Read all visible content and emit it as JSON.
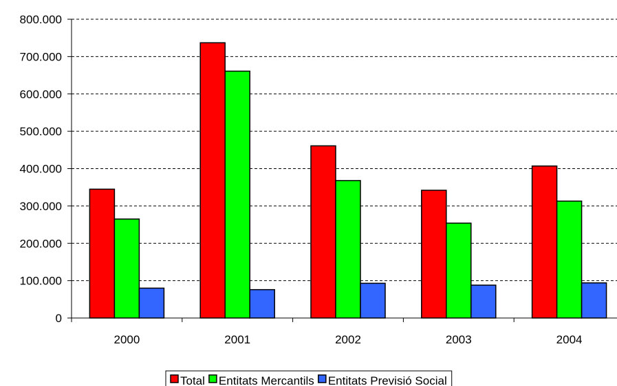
{
  "chart_data": {
    "type": "bar",
    "title": "",
    "xlabel": "",
    "ylabel": "",
    "categories": [
      "2000",
      "2001",
      "2002",
      "2003",
      "2004"
    ],
    "series": [
      {
        "name": "Total",
        "color": "#ff0000",
        "values": [
          345000,
          737000,
          461000,
          342000,
          407000
        ]
      },
      {
        "name": "Entitats Mercantils",
        "color": "#00ff00",
        "values": [
          265000,
          661000,
          368000,
          254000,
          313000
        ]
      },
      {
        "name": "Entitats Previsió Social",
        "color": "#3366ff",
        "values": [
          80000,
          76000,
          93000,
          88000,
          94000
        ]
      }
    ],
    "ylim": [
      0,
      800000
    ],
    "yticks": [
      0,
      100000,
      200000,
      300000,
      400000,
      500000,
      600000,
      700000,
      800000
    ],
    "ytick_labels": [
      "0",
      "100.000",
      "200.000",
      "300.000",
      "400.000",
      "500.000",
      "600.000",
      "700.000",
      "800.000"
    ],
    "grid": true,
    "legend_position": "bottom"
  }
}
